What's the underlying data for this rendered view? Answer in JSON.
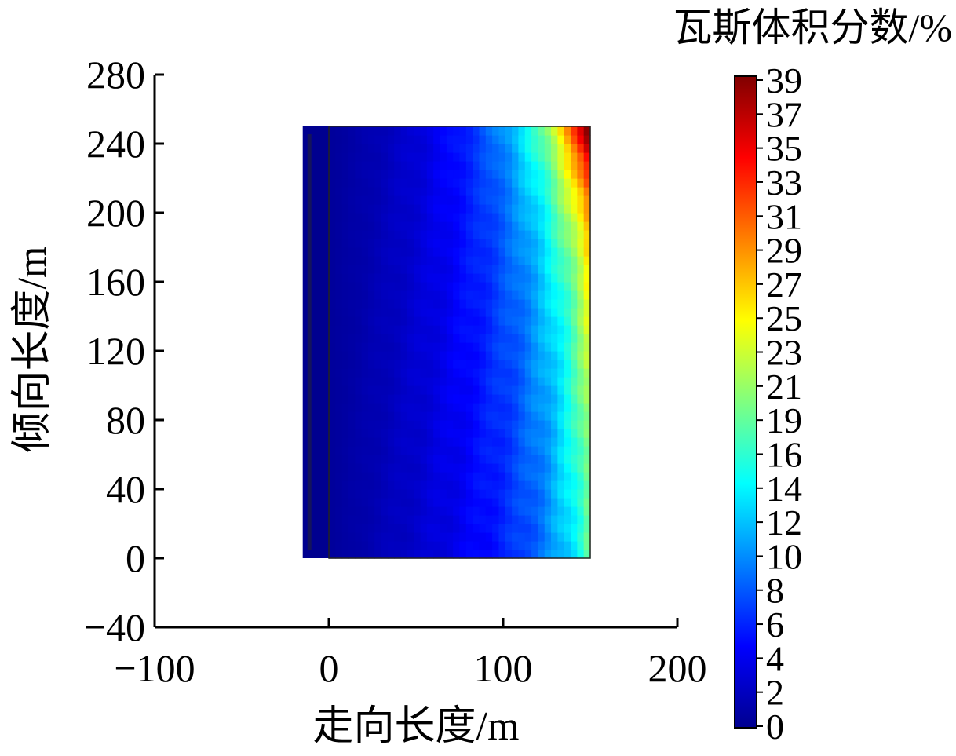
{
  "chart_data": {
    "type": "heatmap",
    "title": "",
    "xlabel": "走向长度/m",
    "ylabel": "倾向长度/m",
    "xlim": [
      -100,
      200
    ],
    "ylim": [
      -40,
      280
    ],
    "x_ticks": [
      "−100",
      "0",
      "100",
      "200"
    ],
    "y_ticks": [
      "280",
      "240",
      "200",
      "160",
      "120",
      "80",
      "40",
      "0",
      "−40"
    ],
    "grid": false,
    "colormap": "jet",
    "colorbar": {
      "title": "瓦斯体积分数/%",
      "range": [
        0,
        39
      ],
      "ticks": [
        "39",
        "37",
        "35",
        "33",
        "31",
        "29",
        "27",
        "25",
        "23",
        "21",
        "19",
        "16",
        "14",
        "12",
        "10",
        "8",
        "6",
        "4",
        "2",
        "0"
      ]
    },
    "field": {
      "x_range": [
        0,
        150
      ],
      "y_range": [
        0,
        250
      ],
      "description_values": {
        "near_x0": 2,
        "mid_x75_y125": 8,
        "x120_y240": 20,
        "edge_x150_y120": 24,
        "corner_x145_y245": 33
      }
    },
    "roadway": {
      "x_range": [
        -15,
        0
      ],
      "y_range": [
        0,
        250
      ]
    }
  }
}
